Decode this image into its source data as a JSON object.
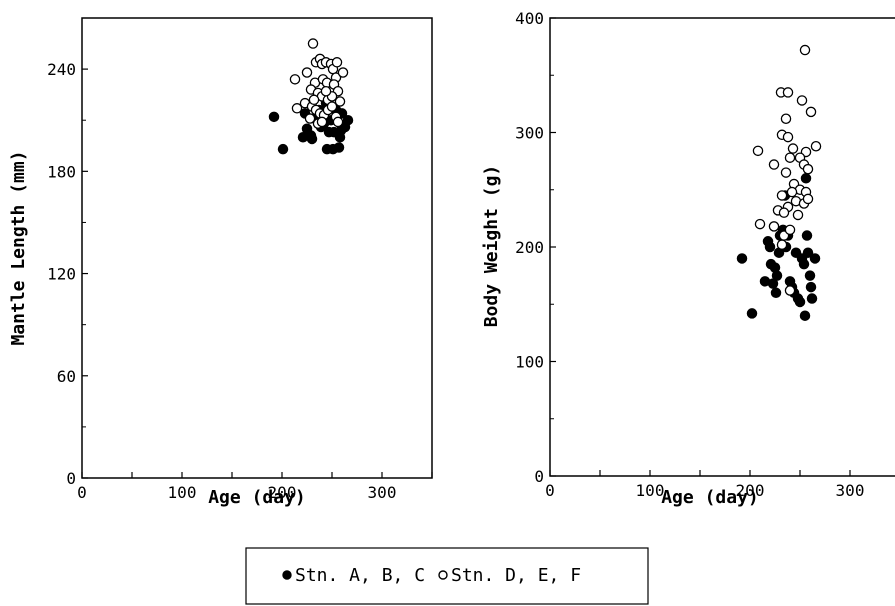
{
  "chart_data": [
    {
      "type": "scatter",
      "xlabel": "Age (day)",
      "ylabel": "Mantle Length (mm)",
      "xlim": [
        0,
        350
      ],
      "ylim": [
        0,
        270
      ],
      "xticks": [
        0,
        100,
        200,
        300
      ],
      "yticks": [
        0,
        60,
        120,
        180,
        240
      ],
      "grid": false,
      "series": [
        {
          "name": "Stn. A, B, C",
          "marker": "filled-circle",
          "points": [
            [
              192,
              212
            ],
            [
              201,
              193
            ],
            [
              221,
              200
            ],
            [
              223,
              214
            ],
            [
              225,
              205
            ],
            [
              229,
              201
            ],
            [
              230,
              199
            ],
            [
              233,
              211
            ],
            [
              237,
              216
            ],
            [
              239,
              206
            ],
            [
              242,
              208
            ],
            [
              245,
              193
            ],
            [
              247,
              203
            ],
            [
              249,
              210
            ],
            [
              251,
              193
            ],
            [
              252,
              203
            ],
            [
              254,
              216
            ],
            [
              257,
              194
            ],
            [
              258,
              200
            ],
            [
              259,
              204
            ],
            [
              260,
              214
            ],
            [
              263,
              206
            ],
            [
              266,
              210
            ],
            [
              244,
              220
            ],
            [
              236,
              212
            ]
          ]
        },
        {
          "name": "Stn. D, E, F",
          "marker": "open-circle",
          "points": [
            [
              231,
              255
            ],
            [
              234,
              244
            ],
            [
              238,
              246
            ],
            [
              240,
              243
            ],
            [
              244,
              244
            ],
            [
              249,
              243
            ],
            [
              251,
              240
            ],
            [
              255,
              244
            ],
            [
              225,
              238
            ],
            [
              254,
              235
            ],
            [
              261,
              238
            ],
            [
              213,
              234
            ],
            [
              233,
              232
            ],
            [
              241,
              234
            ],
            [
              245,
              232
            ],
            [
              252,
              231
            ],
            [
              256,
              227
            ],
            [
              229,
              228
            ],
            [
              236,
              226
            ],
            [
              240,
              224
            ],
            [
              246,
              222
            ],
            [
              250,
              224
            ],
            [
              258,
              221
            ],
            [
              223,
              220
            ],
            [
              230,
              218
            ],
            [
              234,
              216
            ],
            [
              238,
              214
            ],
            [
              242,
              213
            ],
            [
              246,
              216
            ],
            [
              250,
              218
            ],
            [
              254,
              212
            ],
            [
              215,
              217
            ],
            [
              228,
              211
            ],
            [
              236,
              208
            ],
            [
              240,
              209
            ],
            [
              256,
              209
            ],
            [
              232,
              222
            ],
            [
              244,
              227
            ]
          ]
        }
      ]
    },
    {
      "type": "scatter",
      "xlabel": "Age (day)",
      "ylabel": "Body Weight (g)",
      "xlim": [
        0,
        350
      ],
      "ylim": [
        0,
        400
      ],
      "xticks": [
        0,
        100,
        200,
        300
      ],
      "yticks": [
        0,
        100,
        200,
        300,
        400
      ],
      "grid": false,
      "series": [
        {
          "name": "Stn. A, B, C",
          "marker": "filled-circle",
          "points": [
            [
              192,
              190
            ],
            [
              202,
              142
            ],
            [
              215,
              170
            ],
            [
              220,
              200
            ],
            [
              221,
              185
            ],
            [
              223,
              168
            ],
            [
              225,
              182
            ],
            [
              226,
              160
            ],
            [
              229,
              195
            ],
            [
              230,
              210
            ],
            [
              233,
              215
            ],
            [
              235,
              245
            ],
            [
              236,
              200
            ],
            [
              238,
              210
            ],
            [
              240,
              170
            ],
            [
              242,
              165
            ],
            [
              244,
              160
            ],
            [
              246,
              195
            ],
            [
              248,
              155
            ],
            [
              250,
              152
            ],
            [
              252,
              190
            ],
            [
              254,
              185
            ],
            [
              255,
              140
            ],
            [
              256,
              260
            ],
            [
              257,
              210
            ],
            [
              258,
              195
            ],
            [
              260,
              175
            ],
            [
              261,
              165
            ],
            [
              262,
              155
            ],
            [
              265,
              190
            ],
            [
              227,
              175
            ],
            [
              218,
              205
            ]
          ]
        },
        {
          "name": "Stn. D, E, F",
          "marker": "open-circle",
          "points": [
            [
              231,
              335
            ],
            [
              238,
              335
            ],
            [
              252,
              328
            ],
            [
              255,
              372
            ],
            [
              261,
              318
            ],
            [
              236,
              312
            ],
            [
              232,
              298
            ],
            [
              238,
              296
            ],
            [
              208,
              284
            ],
            [
              243,
              286
            ],
            [
              256,
              283
            ],
            [
              266,
              288
            ],
            [
              240,
              278
            ],
            [
              250,
              278
            ],
            [
              224,
              272
            ],
            [
              254,
              272
            ],
            [
              258,
              268
            ],
            [
              236,
              265
            ],
            [
              244,
              255
            ],
            [
              250,
              250
            ],
            [
              232,
              245
            ],
            [
              242,
              248
            ],
            [
              256,
              248
            ],
            [
              246,
              240
            ],
            [
              254,
              238
            ],
            [
              238,
              235
            ],
            [
              228,
              232
            ],
            [
              234,
              230
            ],
            [
              248,
              228
            ],
            [
              210,
              220
            ],
            [
              224,
              218
            ],
            [
              234,
              210
            ],
            [
              240,
              215
            ],
            [
              232,
              202
            ],
            [
              240,
              162
            ],
            [
              258,
              242
            ]
          ]
        }
      ]
    }
  ],
  "legend": {
    "items": [
      {
        "label": "Stn. A, B, C",
        "marker": "filled-circle"
      },
      {
        "label": "Stn. D, E, F",
        "marker": "open-circle"
      }
    ]
  }
}
